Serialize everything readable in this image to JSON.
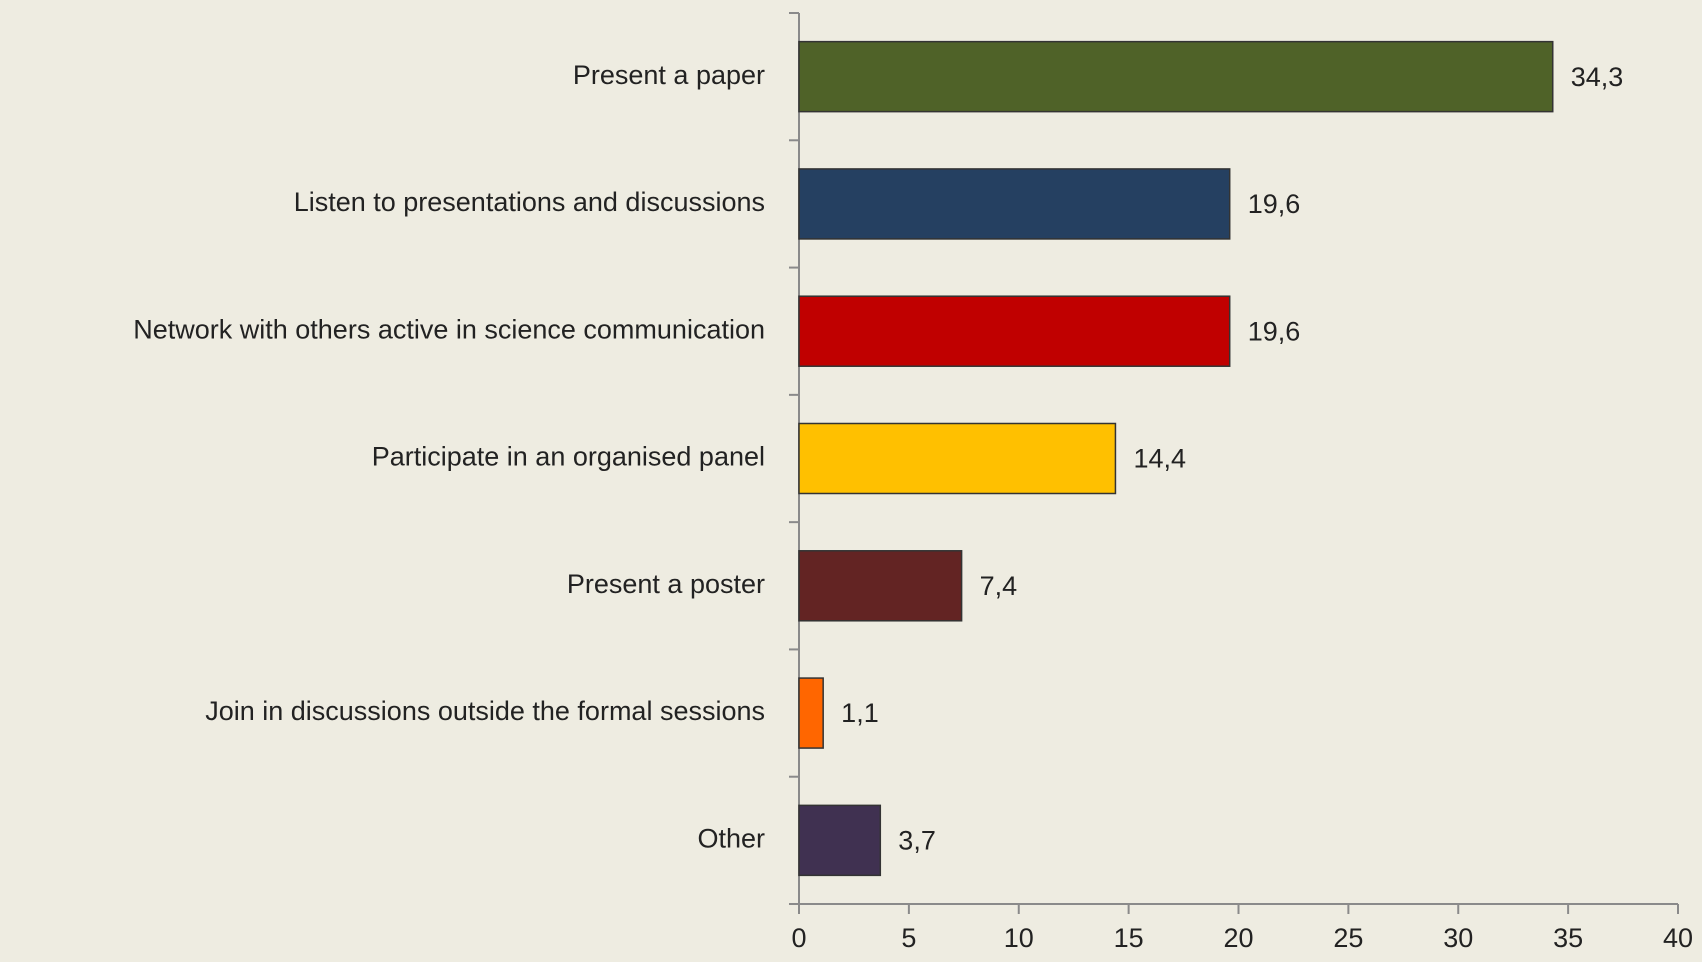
{
  "chart_data": {
    "type": "hbar",
    "categories": [
      "Present a paper",
      "Listen to presentations and discussions",
      "Network with others active in science communication",
      "Participate in an organised panel",
      "Present a poster",
      "Join in discussions outside the formal sessions",
      "Other"
    ],
    "values": [
      34.3,
      19.6,
      19.6,
      14.4,
      7.4,
      1.1,
      3.7
    ],
    "value_labels": [
      "34,3",
      "19,6",
      "19,6",
      "14,4",
      "7,4",
      "1,1",
      "3,7"
    ],
    "colors": [
      "#4f6228",
      "#254061",
      "#c00000",
      "#ffc000",
      "#632423",
      "#ff6600",
      "#403151"
    ],
    "xlim": [
      0,
      40
    ],
    "xticks": [
      0,
      5,
      10,
      15,
      20,
      25,
      30,
      35,
      40
    ],
    "grid": false
  }
}
